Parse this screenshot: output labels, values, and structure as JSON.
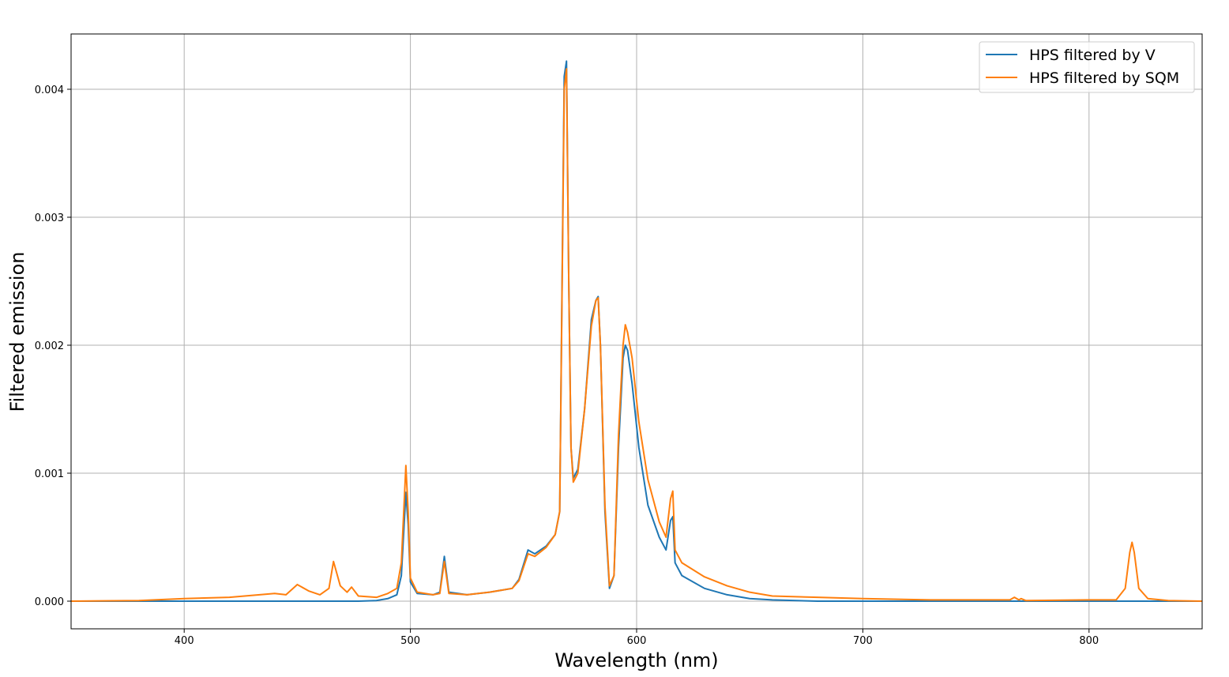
{
  "chart_data": {
    "type": "line",
    "xlabel": "Wavelength (nm)",
    "ylabel": "Filtered emission",
    "x": [
      350,
      380,
      400,
      420,
      440,
      445,
      450,
      455,
      460,
      464,
      466,
      469,
      472,
      474,
      477,
      485,
      490,
      494,
      496,
      498,
      499,
      500,
      503,
      510,
      513,
      515,
      517,
      525,
      535,
      545,
      548,
      552,
      555,
      560,
      564,
      566,
      568,
      569,
      570,
      571,
      572,
      574,
      577,
      580,
      582,
      583,
      584,
      586,
      588,
      590,
      592,
      594,
      595,
      596,
      598,
      601,
      605,
      610,
      613,
      615,
      616,
      617,
      620,
      630,
      640,
      650,
      660,
      680,
      700,
      730,
      765,
      767,
      769,
      770,
      772,
      800,
      812,
      816,
      818,
      819,
      820,
      822,
      826,
      835,
      850
    ],
    "series": [
      {
        "name": "HPS filtered by V",
        "color": "#1f77b4",
        "values": [
          0,
          0,
          0,
          0,
          0,
          0,
          0,
          0,
          0,
          0,
          0,
          0,
          0,
          0,
          0,
          5e-06,
          2e-05,
          5e-05,
          0.0002,
          0.00085,
          0.0006,
          0.00015,
          6e-05,
          5e-05,
          7e-05,
          0.00035,
          7e-05,
          5e-05,
          7e-05,
          0.0001,
          0.00017,
          0.0004,
          0.00037,
          0.00043,
          0.00052,
          0.0007,
          0.0041,
          0.00422,
          0.0025,
          0.0012,
          0.00096,
          0.00103,
          0.0015,
          0.0022,
          0.00235,
          0.00238,
          0.002,
          0.0007,
          0.0001,
          0.0002,
          0.0012,
          0.0019,
          0.002,
          0.00196,
          0.0017,
          0.0012,
          0.00075,
          0.0005,
          0.0004,
          0.00063,
          0.00066,
          0.0003,
          0.0002,
          0.0001,
          5e-05,
          2e-05,
          1e-05,
          0,
          0,
          0,
          0,
          0,
          0,
          0,
          0,
          0,
          0,
          0,
          0,
          0,
          0,
          0,
          0,
          0,
          0
        ]
      },
      {
        "name": "HPS filtered by SQM",
        "color": "#ff7f0e",
        "values": [
          0,
          5e-06,
          2e-05,
          3e-05,
          6e-05,
          5e-05,
          0.00013,
          8e-05,
          5e-05,
          0.0001,
          0.00031,
          0.00012,
          7e-05,
          0.00011,
          4e-05,
          3e-05,
          6e-05,
          0.0001,
          0.0003,
          0.00106,
          0.0007,
          0.00018,
          7e-05,
          5e-05,
          6e-05,
          0.00031,
          6e-05,
          5e-05,
          7e-05,
          0.0001,
          0.00016,
          0.00037,
          0.00035,
          0.00042,
          0.00052,
          0.0007,
          0.004,
          0.00416,
          0.0025,
          0.0012,
          0.00093,
          0.001,
          0.0015,
          0.00215,
          0.00235,
          0.00237,
          0.002,
          0.00075,
          0.00012,
          0.0002,
          0.0013,
          0.002,
          0.00216,
          0.0021,
          0.0019,
          0.0014,
          0.00095,
          0.00062,
          0.0005,
          0.0008,
          0.00086,
          0.0004,
          0.0003,
          0.00019,
          0.00012,
          7e-05,
          4e-05,
          3e-05,
          2e-05,
          1e-05,
          1e-05,
          3e-05,
          1e-05,
          2e-05,
          5e-06,
          1e-05,
          1e-05,
          0.0001,
          0.00038,
          0.00046,
          0.00038,
          0.0001,
          2e-05,
          5e-06,
          0
        ]
      }
    ],
    "xlim": [
      350,
      850
    ],
    "ylim": [
      -0.000216,
      0.004432
    ],
    "xticks": [
      400,
      500,
      600,
      700,
      800
    ],
    "yticks": [
      {
        "value": 0,
        "label": "0.000"
      },
      {
        "value": 0.001,
        "label": "0.001"
      },
      {
        "value": 0.002,
        "label": "0.002"
      },
      {
        "value": 0.003,
        "label": "0.003"
      },
      {
        "value": 0.004,
        "label": "0.004"
      }
    ],
    "grid": true,
    "legend": "upper right"
  }
}
